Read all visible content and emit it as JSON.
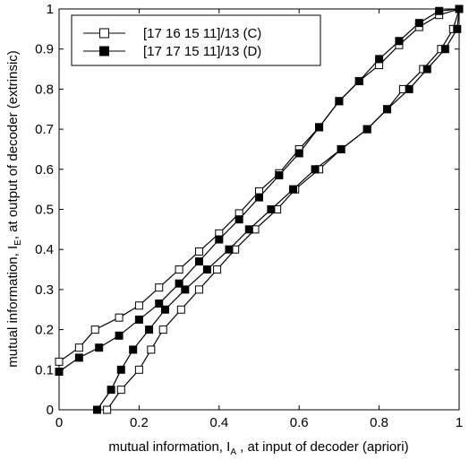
{
  "chart_data": {
    "type": "line",
    "xlabel_main": "mutual information, I",
    "xlabel_sub": "A",
    "xlabel_tail": " , at input of decoder (apriori)",
    "ylabel_main": "mutual information, I",
    "ylabel_sub": "E",
    "ylabel_tail": ", at output of decoder (extrinsic)",
    "xlim": [
      0,
      1
    ],
    "ylim": [
      0,
      1
    ],
    "xticks": [
      "0",
      "0.2",
      "0.4",
      "0.6",
      "0.8",
      "1"
    ],
    "yticks": [
      "0",
      "0.1",
      "0.2",
      "0.3",
      "0.4",
      "0.5",
      "0.6",
      "0.7",
      "0.8",
      "0.9",
      "1"
    ],
    "grid": false,
    "legend_position": "top-left",
    "series": [
      {
        "name": "[17 16 15 11]/13 (C)",
        "marker": "open-square",
        "color": "#000000",
        "curves": [
          {
            "x": [
              0.0,
              0.05,
              0.09,
              0.15,
              0.2,
              0.25,
              0.3,
              0.35,
              0.4,
              0.45,
              0.5,
              0.55,
              0.6,
              0.65,
              0.7,
              0.75,
              0.8,
              0.85,
              0.9,
              0.95,
              1.0
            ],
            "y": [
              0.12,
              0.155,
              0.2,
              0.23,
              0.26,
              0.305,
              0.35,
              0.395,
              0.44,
              0.49,
              0.545,
              0.59,
              0.65,
              0.705,
              0.77,
              0.82,
              0.86,
              0.91,
              0.955,
              0.985,
              1.0
            ]
          },
          {
            "x": [
              0.12,
              0.155,
              0.2,
              0.23,
              0.26,
              0.305,
              0.35,
              0.395,
              0.44,
              0.49,
              0.545,
              0.59,
              0.65,
              0.705,
              0.77,
              0.82,
              0.86,
              0.91,
              0.955,
              0.985,
              1.0
            ],
            "y": [
              0.0,
              0.05,
              0.1,
              0.15,
              0.2,
              0.25,
              0.3,
              0.35,
              0.4,
              0.45,
              0.5,
              0.55,
              0.6,
              0.65,
              0.7,
              0.75,
              0.8,
              0.85,
              0.9,
              0.95,
              1.0
            ]
          }
        ]
      },
      {
        "name": "[17 17 15 11]/13 (D)",
        "marker": "filled-square",
        "color": "#000000",
        "curves": [
          {
            "x": [
              0.0,
              0.05,
              0.1,
              0.15,
              0.2,
              0.25,
              0.3,
              0.35,
              0.4,
              0.45,
              0.5,
              0.55,
              0.6,
              0.65,
              0.7,
              0.75,
              0.8,
              0.85,
              0.9,
              0.95,
              1.0
            ],
            "y": [
              0.095,
              0.13,
              0.155,
              0.185,
              0.225,
              0.265,
              0.315,
              0.37,
              0.425,
              0.475,
              0.53,
              0.585,
              0.64,
              0.705,
              0.77,
              0.82,
              0.875,
              0.92,
              0.965,
              0.995,
              1.0
            ]
          },
          {
            "x": [
              0.095,
              0.13,
              0.155,
              0.185,
              0.225,
              0.265,
              0.315,
              0.37,
              0.425,
              0.475,
              0.53,
              0.585,
              0.64,
              0.705,
              0.77,
              0.82,
              0.875,
              0.92,
              0.965,
              0.995,
              1.0
            ],
            "y": [
              0.0,
              0.05,
              0.1,
              0.15,
              0.2,
              0.25,
              0.3,
              0.35,
              0.4,
              0.45,
              0.5,
              0.55,
              0.6,
              0.65,
              0.7,
              0.75,
              0.8,
              0.85,
              0.9,
              0.95,
              1.0
            ]
          }
        ]
      }
    ]
  }
}
